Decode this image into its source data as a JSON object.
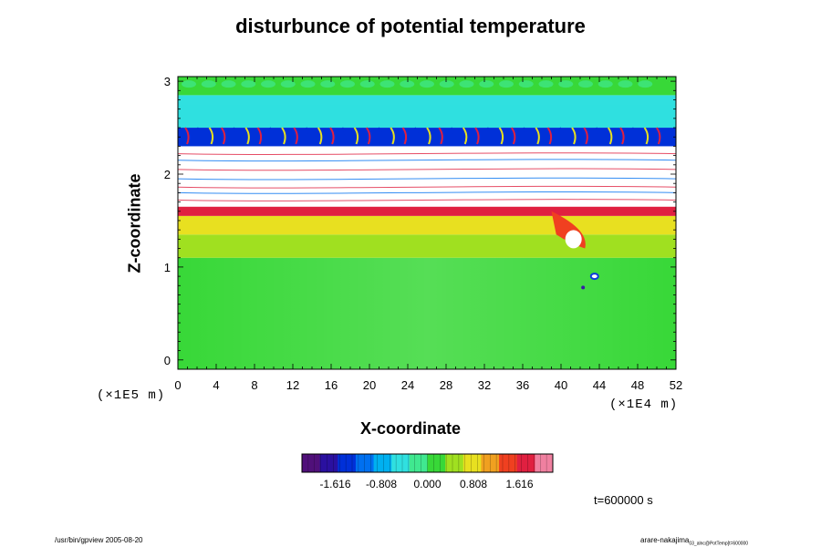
{
  "chart_data": {
    "type": "heatmap",
    "title": "disturbunce of potential temperature",
    "xlabel": "X-coordinate",
    "ylabel": "Z-coordinate",
    "x_ticks": [
      "0",
      "4",
      "8",
      "12",
      "16",
      "20",
      "24",
      "28",
      "32",
      "36",
      "40",
      "44",
      "48",
      "52"
    ],
    "y_ticks": [
      "0",
      "1",
      "2",
      "3"
    ],
    "xlim": [
      0,
      52
    ],
    "ylim": [
      -0.1,
      3.05
    ],
    "x_scale_label": "(×1E4 m)",
    "z_scale_label": "(×1E5 m)",
    "colorbar": {
      "range": [
        -2.2,
        2.2
      ],
      "tick_labels": [
        "-1.616",
        "-0.808",
        "0.000",
        "0.808",
        "1.616"
      ],
      "tick_values": [
        -1.616,
        -0.808,
        0.0,
        0.808,
        1.616
      ],
      "colors": [
        "#50107a",
        "#2a10a0",
        "#0030d8",
        "#0070f0",
        "#00b0f0",
        "#30e0e0",
        "#40e890",
        "#38d838",
        "#a0e020",
        "#e8e020",
        "#f0a020",
        "#f04020",
        "#e02040",
        "#f080a0"
      ]
    },
    "field_bands": [
      {
        "z": [
          -0.1,
          1.1
        ],
        "value": 0.0
      },
      {
        "z": [
          1.1,
          1.35
        ],
        "value": 0.5
      },
      {
        "z": [
          1.35,
          1.55
        ],
        "value": 0.9
      },
      {
        "z": [
          1.55,
          1.65
        ],
        "value": 1.7
      },
      {
        "z": [
          1.65,
          2.3
        ],
        "value": 3.0
      },
      {
        "z": [
          2.3,
          2.5
        ],
        "value": -1.5
      },
      {
        "z": [
          2.5,
          2.85
        ],
        "value": -0.4
      },
      {
        "z": [
          2.85,
          3.05
        ],
        "value": 0.1
      }
    ],
    "time_label": "t=600000 s"
  },
  "footer": {
    "left": "/usr/bin/gpview 2005-08-20",
    "right_main": "arare-nakajima",
    "right_sub": "03_alnc@PotTemp[t=600000"
  }
}
